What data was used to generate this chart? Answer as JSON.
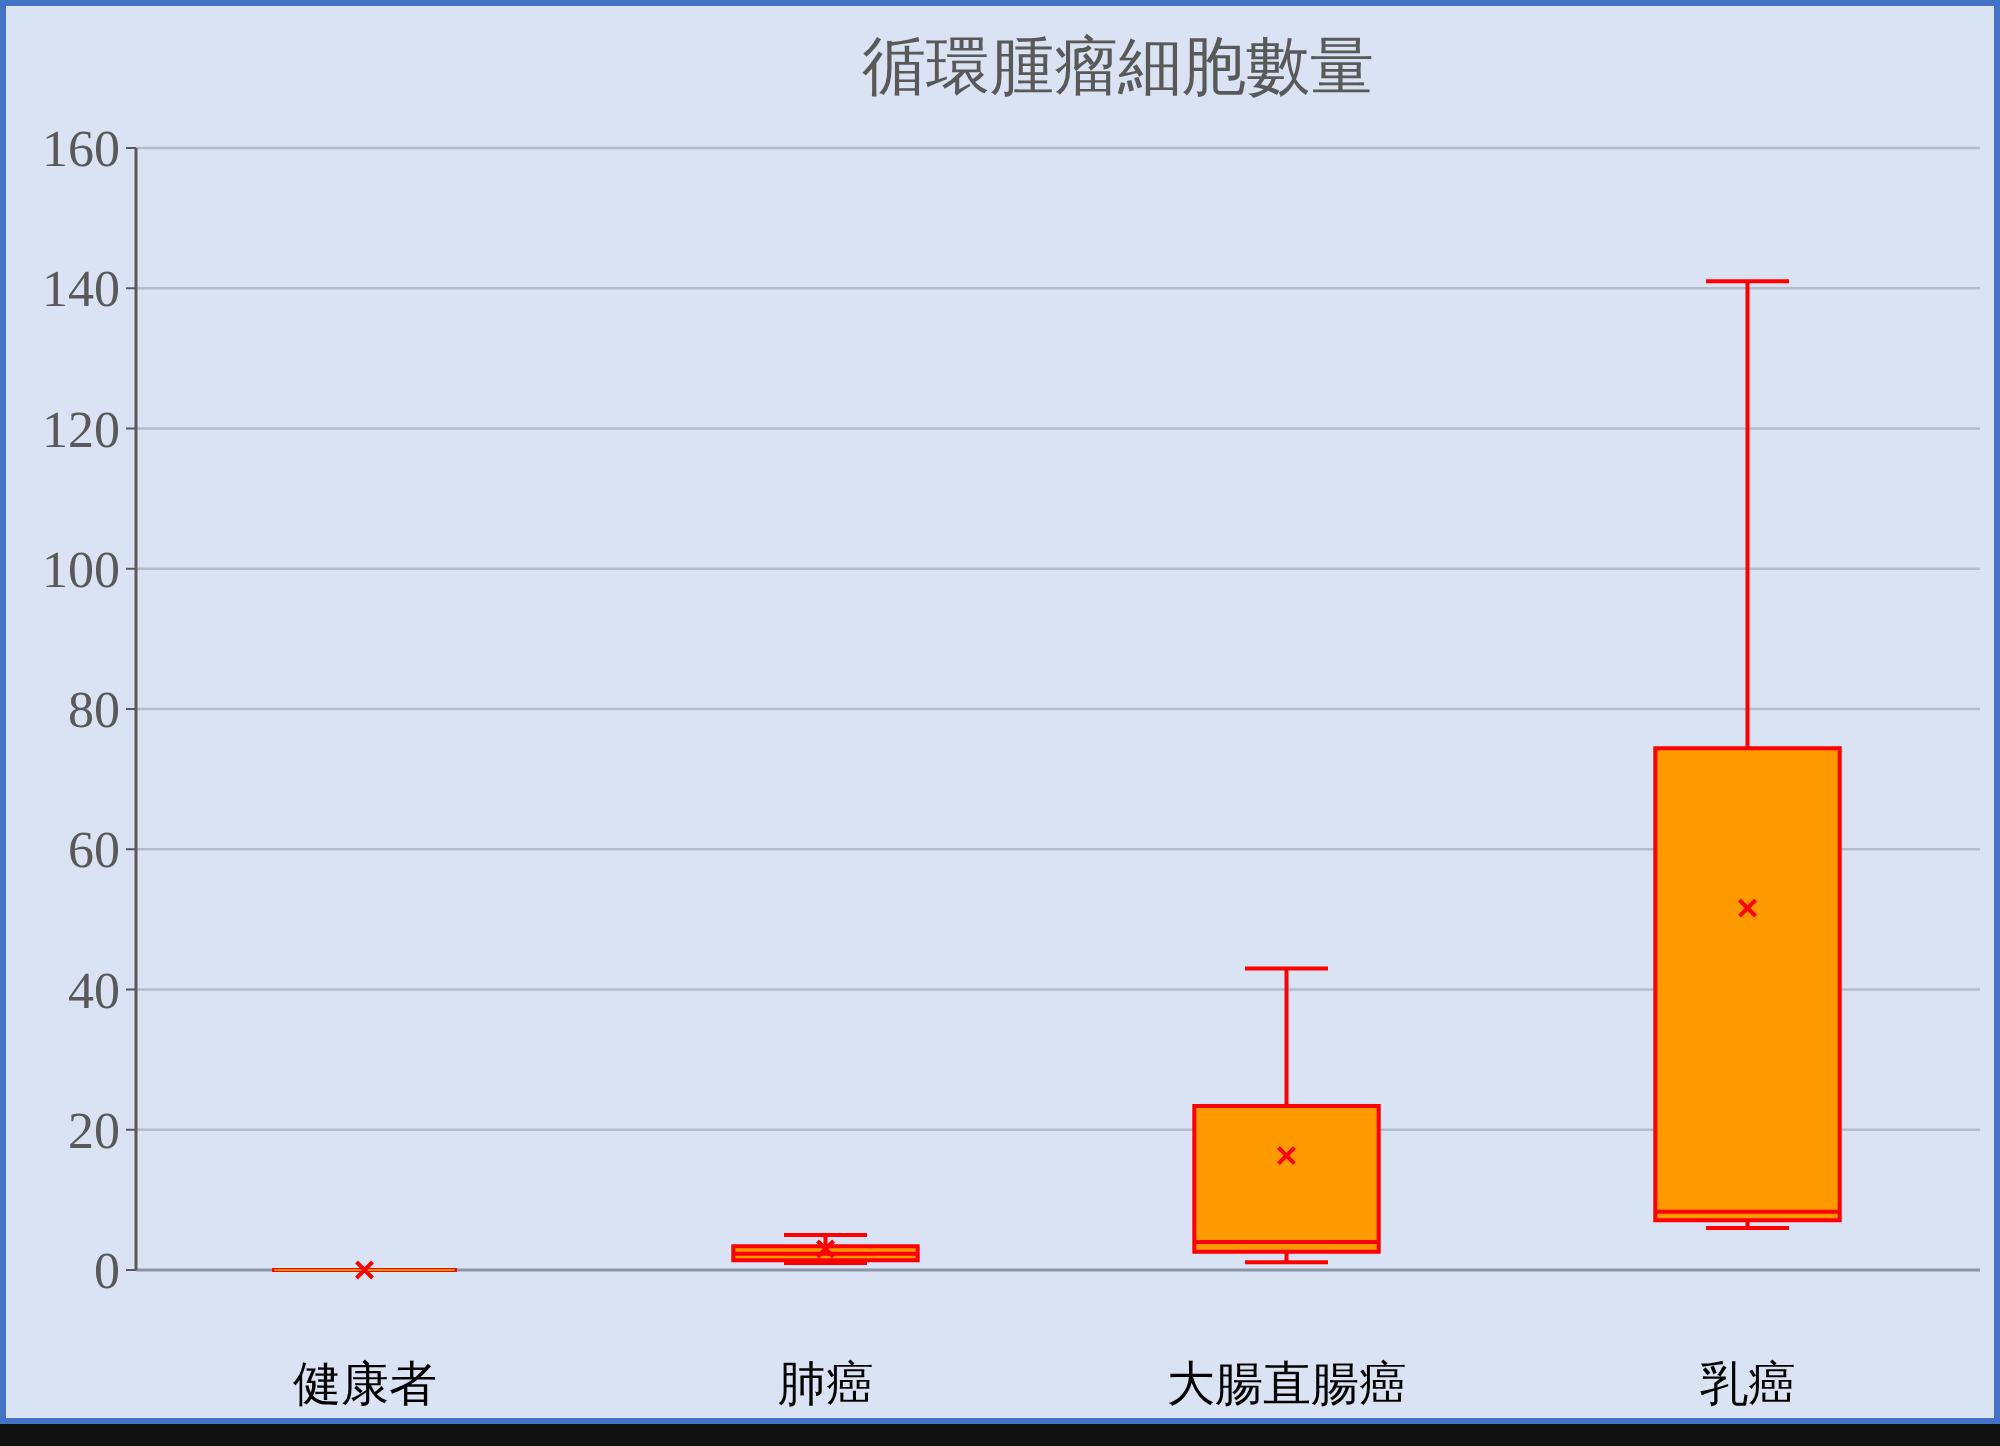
{
  "chart_data": {
    "type": "box",
    "title": "循環腫瘤細胞數量",
    "categories": [
      "健康者",
      "肺癌",
      "大腸直腸癌",
      "乳癌"
    ],
    "boxes": [
      {
        "low": 0,
        "q1": 0,
        "median": 0,
        "q3": 0,
        "high": 0,
        "mean": 0
      },
      {
        "low": 1,
        "q1": 1.4,
        "median": 2.3,
        "q3": 3.4,
        "high": 5,
        "mean": 3
      },
      {
        "low": 1.1,
        "q1": 2.6,
        "median": 4,
        "q3": 23.4,
        "high": 43,
        "mean": 16.3
      },
      {
        "low": 6,
        "q1": 7.1,
        "median": 8.3,
        "q3": 74.4,
        "high": 141,
        "mean": 51.6
      }
    ],
    "color": "#ff9900",
    "ylim": [
      0,
      160
    ],
    "yticks": [
      0,
      20,
      40,
      60,
      80,
      100,
      120,
      140,
      160
    ],
    "grid": "y"
  }
}
